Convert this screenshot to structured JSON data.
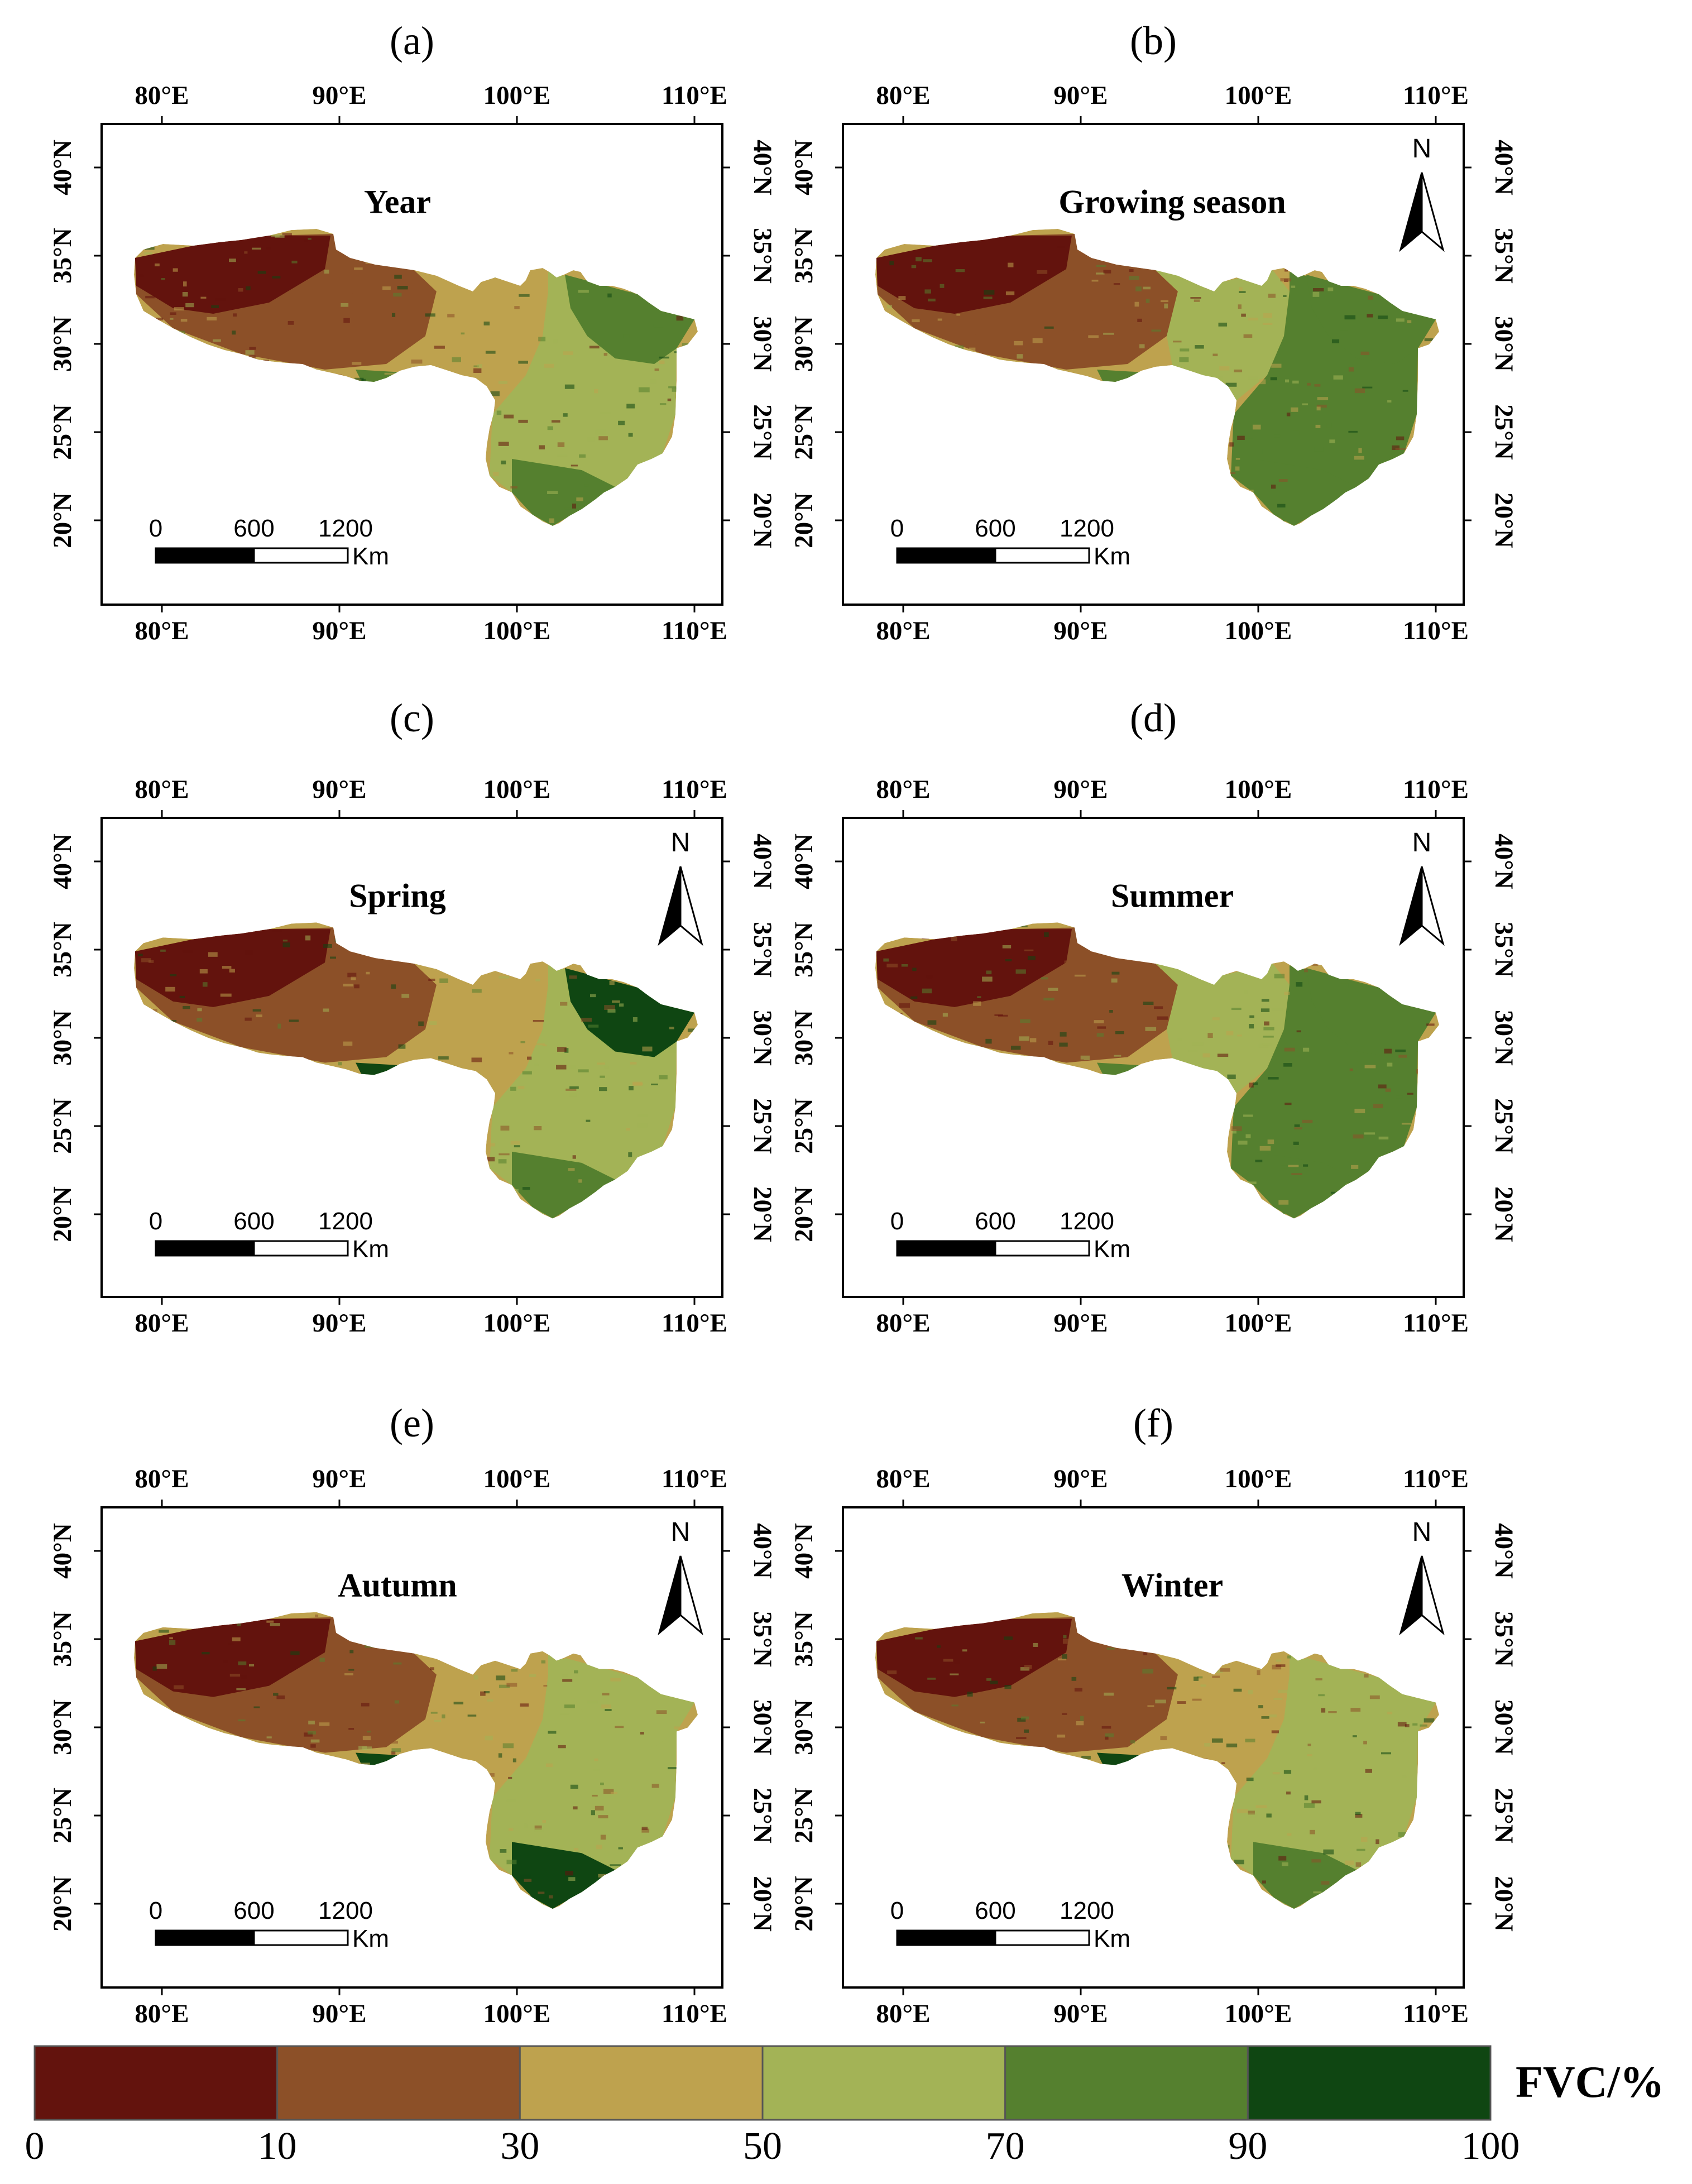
{
  "colors": {
    "fvc_0_10": "#63130d",
    "fvc_10_30": "#8c5028",
    "fvc_30_50": "#bea24e",
    "fvc_50_70": "#a3b356",
    "fvc_70_90": "#55802f",
    "fvc_90_100": "#0f4612"
  },
  "axes": {
    "lon_labels": [
      "80°E",
      "90°E",
      "100°E",
      "110°E"
    ],
    "lat_labels": [
      "40°N",
      "35°N",
      "30°N",
      "25°N",
      "20°N"
    ]
  },
  "scale_bar": {
    "labels": [
      "0",
      "600",
      "1200"
    ],
    "unit": "Km"
  },
  "north_arrow": "N",
  "panels": [
    {
      "label": "(a)",
      "title": "Year",
      "north_arrow": false
    },
    {
      "label": "(b)",
      "title": "Growing season",
      "north_arrow": true
    },
    {
      "label": "(c)",
      "title": "Spring",
      "north_arrow": true
    },
    {
      "label": "(d)",
      "title": "Summer",
      "north_arrow": true
    },
    {
      "label": "(e)",
      "title": "Autumn",
      "north_arrow": true
    },
    {
      "label": "(f)",
      "title": "Winter",
      "north_arrow": true
    }
  ],
  "colorbar": {
    "title": "FVC/%",
    "ticks": [
      "0",
      "10",
      "30",
      "50",
      "70",
      "90",
      "100"
    ],
    "classes": [
      "0–10",
      "10–30",
      "30–50",
      "50–70",
      "70–90",
      "90–100"
    ]
  }
}
